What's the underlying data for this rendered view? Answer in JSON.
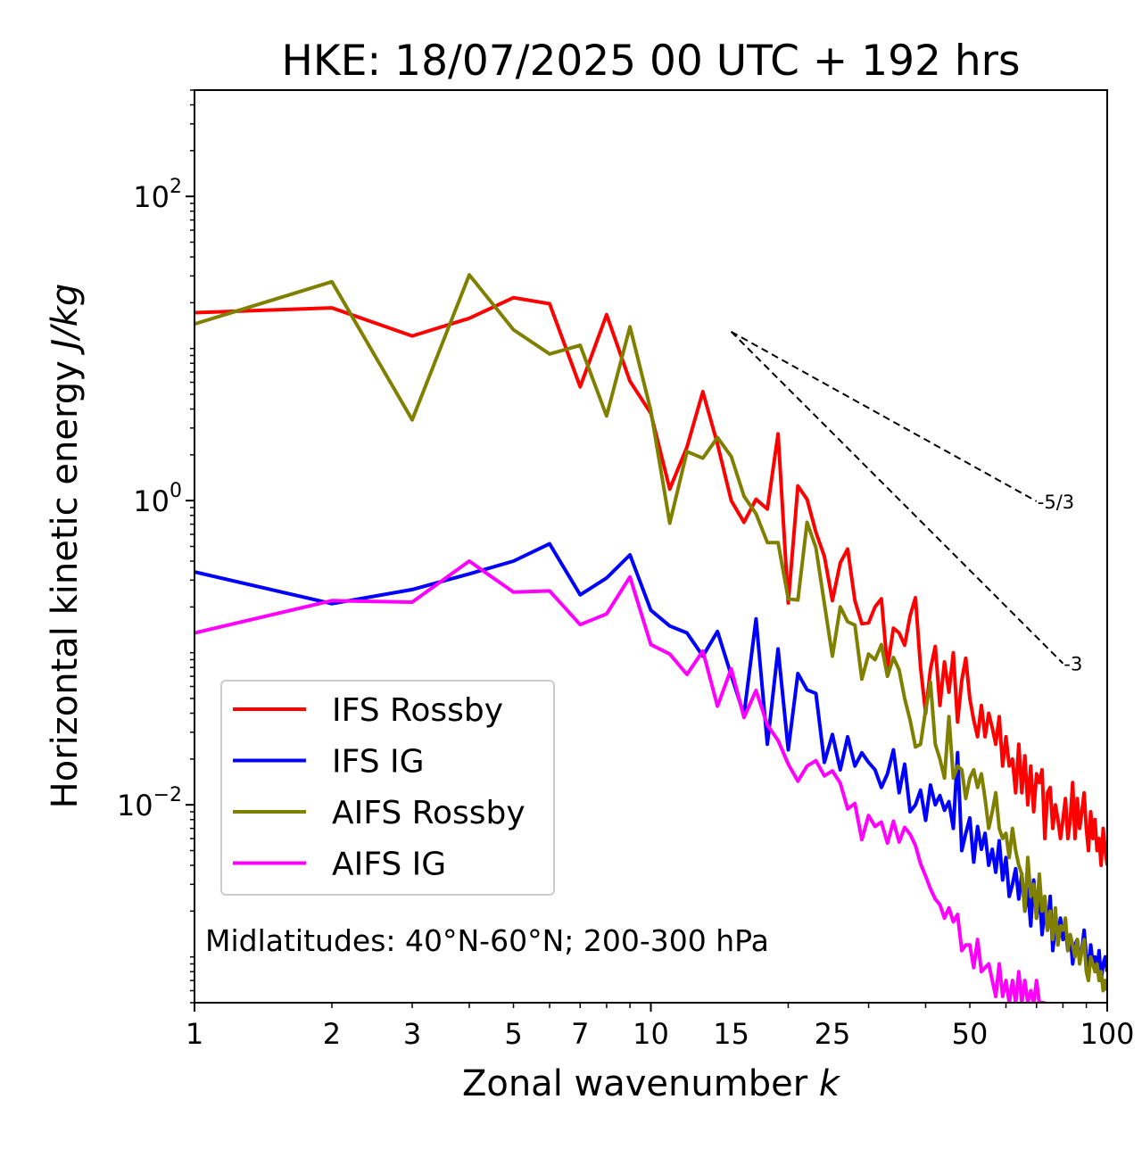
{
  "chart_data": {
    "type": "line",
    "title": "HKE: 18/07/2025 00 UTC + 192 hrs",
    "xlabel_text": "Zonal wavenumber ",
    "xlabel_var": "k",
    "ylabel_text": "Horizontal kinetic energy ",
    "ylabel_var": "J/kg",
    "xscale": "log",
    "yscale": "log",
    "xlim": [
      1,
      100
    ],
    "ylim": [
      0.0005,
      500
    ],
    "x_ticks": [
      1,
      2,
      3,
      5,
      7,
      10,
      15,
      25,
      50,
      100
    ],
    "x_tick_labels": [
      "1",
      "2",
      "3",
      "5",
      "7",
      "10",
      "15",
      "25",
      "50",
      "100"
    ],
    "y_ticks": [
      100,
      1,
      0.01
    ],
    "y_tick_labels": [
      {
        "base": "10",
        "exp": "2"
      },
      {
        "base": "10",
        "exp": "0"
      },
      {
        "base": "10",
        "exp": "−2"
      }
    ],
    "grid": false,
    "legend_position": "lower-left",
    "annotation": "Midlatitudes: 40°N-60°N; 200-300 hPa",
    "reference_lines": [
      {
        "label": "-5/3",
        "slope": -1.6667,
        "x0": 15,
        "y0": 12.9,
        "x1": 70
      },
      {
        "label": "-3",
        "slope": -3,
        "x0": 15,
        "y0": 12.9,
        "x1": 80
      }
    ],
    "series": [
      {
        "name": "IFS Rossby",
        "color": "#ff0000",
        "x": [
          1,
          2,
          3,
          4,
          5,
          6,
          7,
          8,
          9,
          10,
          11,
          12,
          13,
          14,
          15,
          16,
          17,
          18,
          19,
          20,
          21,
          22,
          23,
          24,
          25,
          26,
          27,
          28,
          29,
          30,
          31,
          32,
          33,
          34,
          35,
          36,
          37,
          38,
          39,
          40,
          41,
          42,
          43,
          44,
          45,
          46,
          47,
          48,
          49,
          50,
          51,
          52,
          53,
          54,
          55,
          56,
          57,
          58,
          59,
          60,
          61,
          62,
          63,
          64,
          65,
          66,
          67,
          68,
          69,
          70,
          71,
          72,
          73,
          74,
          75,
          76,
          77,
          78,
          79,
          80,
          81,
          82,
          83,
          84,
          85,
          86,
          87,
          88,
          89,
          90,
          91,
          92,
          93,
          94,
          95,
          96,
          97,
          98,
          99,
          100
        ],
        "y": [
          17.2,
          18.5,
          12.1,
          15.8,
          21.6,
          19.7,
          5.6,
          16.7,
          6.1,
          3.75,
          1.19,
          2.25,
          5.2,
          2.35,
          1.0,
          0.72,
          1.02,
          0.88,
          2.75,
          0.212,
          1.25,
          1.02,
          0.62,
          0.43,
          0.22,
          0.39,
          0.48,
          0.22,
          0.155,
          0.157,
          0.2,
          0.226,
          0.08,
          0.145,
          0.135,
          0.112,
          0.175,
          0.23,
          0.08,
          0.04,
          0.078,
          0.11,
          0.045,
          0.087,
          0.055,
          0.1,
          0.035,
          0.066,
          0.092,
          0.05,
          0.036,
          0.028,
          0.045,
          0.028,
          0.04,
          0.032,
          0.025,
          0.038,
          0.018,
          0.028,
          0.018,
          0.02,
          0.012,
          0.025,
          0.012,
          0.021,
          0.01,
          0.018,
          0.009,
          0.016,
          0.014,
          0.017,
          0.006,
          0.012,
          0.013,
          0.007,
          0.01,
          0.008,
          0.006,
          0.008,
          0.011,
          0.006,
          0.008,
          0.014,
          0.006,
          0.011,
          0.007,
          0.009,
          0.012,
          0.007,
          0.005,
          0.009,
          0.006,
          0.008,
          0.005,
          0.006,
          0.004,
          0.007,
          0.005,
          0.004
        ]
      },
      {
        "name": "IFS IG",
        "color": "#0000ff",
        "x": [
          1,
          2,
          3,
          4,
          5,
          6,
          7,
          8,
          9,
          10,
          11,
          12,
          13,
          14,
          15,
          16,
          17,
          18,
          19,
          20,
          21,
          22,
          23,
          24,
          25,
          26,
          27,
          28,
          29,
          30,
          31,
          32,
          33,
          34,
          35,
          36,
          37,
          38,
          39,
          40,
          41,
          42,
          43,
          44,
          45,
          46,
          47,
          48,
          49,
          50,
          51,
          52,
          53,
          54,
          55,
          56,
          57,
          58,
          59,
          60,
          61,
          62,
          63,
          64,
          65,
          66,
          67,
          68,
          69,
          70,
          71,
          72,
          73,
          74,
          75,
          76,
          77,
          78,
          79,
          80,
          81,
          82,
          83,
          84,
          85,
          86,
          87,
          88,
          89,
          90,
          91,
          92,
          93,
          94,
          95,
          96,
          97,
          98,
          99,
          100
        ],
        "y": [
          0.34,
          0.21,
          0.26,
          0.33,
          0.4,
          0.52,
          0.24,
          0.31,
          0.44,
          0.19,
          0.15,
          0.135,
          0.095,
          0.138,
          0.071,
          0.039,
          0.167,
          0.025,
          0.106,
          0.023,
          0.073,
          0.057,
          0.054,
          0.019,
          0.029,
          0.017,
          0.028,
          0.018,
          0.022,
          0.019,
          0.017,
          0.013,
          0.016,
          0.023,
          0.012,
          0.0185,
          0.009,
          0.01,
          0.0125,
          0.0079,
          0.0135,
          0.01,
          0.0115,
          0.0092,
          0.0105,
          0.007,
          0.022,
          0.005,
          0.0065,
          0.0082,
          0.0042,
          0.0072,
          0.0051,
          0.0065,
          0.004,
          0.0051,
          0.0036,
          0.0058,
          0.0032,
          0.0045,
          0.0025,
          0.003,
          0.0038,
          0.0024,
          0.0035,
          0.002,
          0.0028,
          0.0016,
          0.0032,
          0.0018,
          0.0027,
          0.0014,
          0.0021,
          0.0015,
          0.0025,
          0.0011,
          0.0016,
          0.0014,
          0.0018,
          0.0013,
          0.0015,
          0.0011,
          0.0014,
          0.0009,
          0.0012,
          0.0013,
          0.001,
          0.0011,
          0.0015,
          0.001,
          0.0008,
          0.0012,
          0.0009,
          0.001,
          0.0008,
          0.0011,
          0.0007,
          0.0009,
          0.001,
          0.0008
        ]
      },
      {
        "name": "AIFS Rossby",
        "color": "#808000",
        "x": [
          1,
          2,
          3,
          4,
          5,
          6,
          7,
          8,
          9,
          10,
          11,
          12,
          13,
          14,
          15,
          16,
          17,
          18,
          19,
          20,
          21,
          22,
          23,
          24,
          25,
          26,
          27,
          28,
          29,
          30,
          31,
          32,
          33,
          34,
          35,
          36,
          37,
          38,
          39,
          40,
          41,
          42,
          43,
          44,
          45,
          46,
          47,
          48,
          49,
          50,
          51,
          52,
          53,
          54,
          55,
          56,
          57,
          58,
          59,
          60,
          61,
          62,
          63,
          64,
          65,
          66,
          67,
          68,
          69,
          70,
          71,
          72,
          73,
          74,
          75,
          76,
          77,
          78,
          79,
          80,
          81,
          82,
          83,
          84,
          85,
          86,
          87,
          88,
          89,
          90,
          91,
          92,
          93,
          94,
          95,
          96,
          97,
          98,
          99,
          100
        ],
        "y": [
          14.5,
          27.5,
          3.4,
          30.5,
          13.3,
          9.2,
          10.5,
          3.6,
          13.9,
          3.9,
          0.71,
          2.1,
          1.9,
          2.6,
          1.95,
          1.07,
          0.82,
          0.53,
          0.53,
          0.226,
          0.222,
          0.72,
          0.49,
          0.21,
          0.095,
          0.2,
          0.16,
          0.152,
          0.067,
          0.098,
          0.09,
          0.113,
          0.07,
          0.093,
          0.077,
          0.05,
          0.036,
          0.024,
          0.025,
          0.042,
          0.064,
          0.025,
          0.02,
          0.015,
          0.038,
          0.015,
          0.018,
          0.017,
          0.011,
          0.015,
          0.017,
          0.013,
          0.016,
          0.011,
          0.007,
          0.009,
          0.012,
          0.007,
          0.006,
          0.0065,
          0.0045,
          0.007,
          0.005,
          0.004,
          0.0035,
          0.002,
          0.0045,
          0.0025,
          0.003,
          0.0018,
          0.0035,
          0.002,
          0.0025,
          0.0015,
          0.002,
          0.0013,
          0.0021,
          0.0012,
          0.0016,
          0.0015,
          0.0018,
          0.0011,
          0.0014,
          0.0012,
          0.001,
          0.0013,
          0.0009,
          0.0011,
          0.0013,
          0.0008,
          0.0007,
          0.001,
          0.0009,
          0.0008,
          0.0009,
          0.0007,
          0.0008,
          0.0006,
          0.0007,
          0.0006
        ]
      },
      {
        "name": "AIFS IG",
        "color": "#ff00ff",
        "x": [
          1,
          2,
          3,
          4,
          5,
          6,
          7,
          8,
          9,
          10,
          11,
          12,
          13,
          14,
          15,
          16,
          17,
          18,
          19,
          20,
          21,
          22,
          23,
          24,
          25,
          26,
          27,
          28,
          29,
          30,
          31,
          32,
          33,
          34,
          35,
          36,
          37,
          38,
          39,
          40,
          41,
          42,
          43,
          44,
          45,
          46,
          47,
          48,
          49,
          50,
          51,
          52,
          53,
          54,
          55,
          56,
          57,
          58,
          59,
          60,
          61,
          62,
          63,
          64,
          65,
          66,
          67,
          68,
          69,
          70,
          71,
          72,
          73
        ],
        "y": [
          0.135,
          0.22,
          0.215,
          0.4,
          0.25,
          0.255,
          0.153,
          0.18,
          0.315,
          0.113,
          0.098,
          0.072,
          0.1025,
          0.0445,
          0.0785,
          0.0375,
          0.0565,
          0.0335,
          0.0265,
          0.0185,
          0.0143,
          0.018,
          0.0195,
          0.0155,
          0.0167,
          0.0139,
          0.0094,
          0.0102,
          0.0059,
          0.0085,
          0.0072,
          0.0077,
          0.0056,
          0.0078,
          0.0057,
          0.0071,
          0.0064,
          0.0054,
          0.0041,
          0.0034,
          0.0028,
          0.0024,
          0.0022,
          0.0018,
          0.0021,
          0.0017,
          0.0019,
          0.0011,
          0.0012,
          0.0012,
          0.00085,
          0.0013,
          0.0008,
          0.00085,
          0.0009,
          0.0007,
          0.00055,
          0.0009,
          0.00055,
          0.0007,
          0.0005,
          0.0007,
          0.0005,
          0.0008,
          0.0005,
          0.0007,
          0.0005,
          0.0006,
          0.0005,
          0.0007,
          0.0005,
          0.0005,
          0.0005
        ]
      }
    ]
  }
}
